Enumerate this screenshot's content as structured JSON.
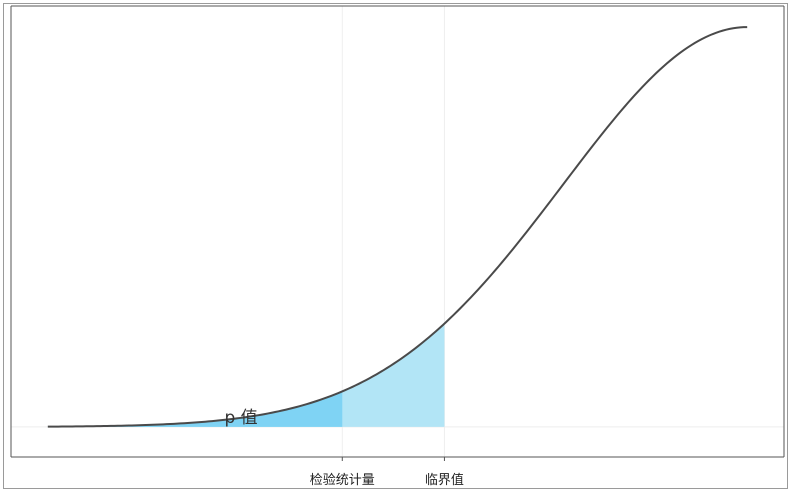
{
  "chart_data": {
    "type": "area",
    "title": "",
    "xlabel": "",
    "ylabel": "",
    "xlim": [
      -4,
      0.2
    ],
    "ylim": [
      -0.03,
      0.42
    ],
    "grid": true,
    "curve": {
      "x": [
        -3.8,
        -3.6,
        -3.4,
        -3.2,
        -3.0,
        -2.8,
        -2.6,
        -2.4,
        -2.2,
        -2.0,
        -1.8,
        -1.6,
        -1.4,
        -1.2,
        -1.0,
        -0.8,
        -0.6,
        -0.4,
        -0.2,
        0.0
      ],
      "y": [
        0.0003,
        0.0006,
        0.0012,
        0.0024,
        0.0044,
        0.0079,
        0.0136,
        0.0224,
        0.0355,
        0.054,
        0.079,
        0.111,
        0.15,
        0.194,
        0.242,
        0.29,
        0.333,
        0.368,
        0.391,
        0.399
      ]
    },
    "test_statistic": -2.2,
    "critical_value": -1.645,
    "x_tick_labels": [
      "检验统计量",
      "临界值"
    ],
    "annotation": "p 值",
    "colors": {
      "curve": "#4a4a4a",
      "p_area": "#7fd3f4",
      "critical_area": "#b2e5f6",
      "grid": "#eeeeee",
      "axis": "#555555"
    }
  }
}
